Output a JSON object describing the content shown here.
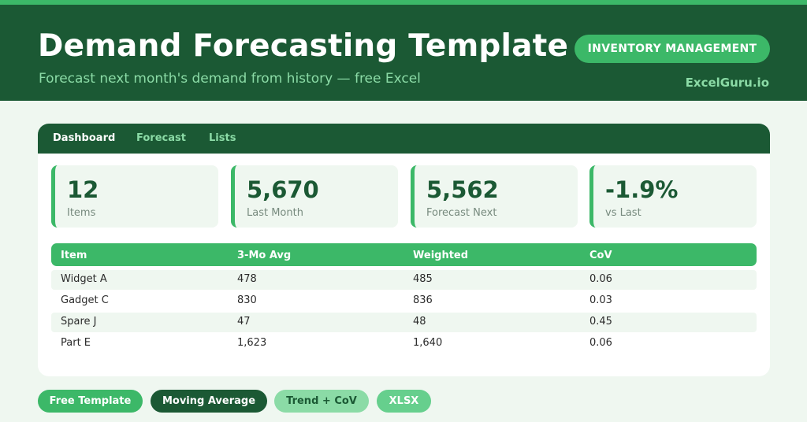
{
  "header": {
    "title": "Demand Forecasting Template",
    "subtitle": "Forecast next month's demand from history — free Excel",
    "badge": "INVENTORY MANAGEMENT",
    "brand": "ExcelGuru.io"
  },
  "tabs": [
    {
      "label": "Dashboard",
      "active": true
    },
    {
      "label": "Forecast",
      "active": false
    },
    {
      "label": "Lists",
      "active": false
    }
  ],
  "kpis": [
    {
      "value": "12",
      "label": "Items"
    },
    {
      "value": "5,670",
      "label": "Last Month"
    },
    {
      "value": "5,562",
      "label": "Forecast Next"
    },
    {
      "value": "-1.9%",
      "label": "vs Last"
    }
  ],
  "table": {
    "columns": [
      "Item",
      "3-Mo Avg",
      "Weighted",
      "CoV"
    ],
    "rows": [
      [
        "Widget A",
        "478",
        "485",
        "0.06"
      ],
      [
        "Gadget C",
        "830",
        "836",
        "0.03"
      ],
      [
        "Spare J",
        "47",
        "48",
        "0.45"
      ],
      [
        "Part E",
        "1,623",
        "1,640",
        "0.06"
      ]
    ]
  },
  "tags": [
    {
      "label": "Free Template",
      "bg": "#3cb868",
      "color": "#ffffff"
    },
    {
      "label": "Moving Average",
      "bg": "#1b5934",
      "color": "#ffffff"
    },
    {
      "label": "Trend + CoV",
      "bg": "#8bdba6",
      "color": "#1b5934"
    },
    {
      "label": "XLSX",
      "bg": "#66cf8d",
      "color": "#ffffff"
    }
  ],
  "colors": {
    "dark_green": "#1b5934",
    "accent_green": "#3cb868",
    "light_green": "#8bdba6",
    "background": "#eff7f0"
  }
}
